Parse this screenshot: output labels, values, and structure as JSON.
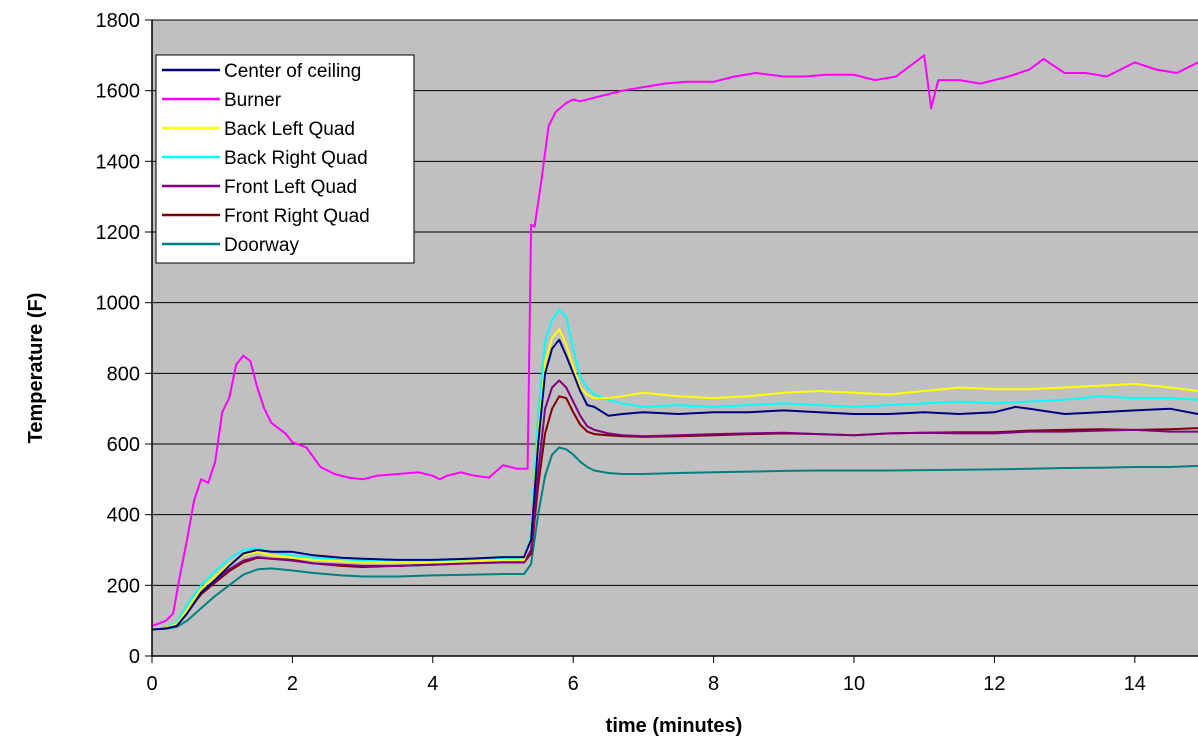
{
  "chart_data": {
    "type": "line",
    "title": "",
    "xlabel": "time (minutes)",
    "ylabel": "Temperature (F)",
    "xlim": [
      0,
      14.9
    ],
    "ylim": [
      0,
      1800
    ],
    "x_ticks": [
      0,
      2,
      4,
      6,
      8,
      10,
      12,
      14
    ],
    "y_ticks": [
      0,
      200,
      400,
      600,
      800,
      1000,
      1200,
      1400,
      1600,
      1800
    ],
    "grid": "horizontal",
    "legend_position": "top-left",
    "plot_background": "#c0c0c0",
    "series": [
      {
        "name": "Center of ceiling",
        "color": "#000080",
        "x": [
          0,
          0.2,
          0.35,
          0.5,
          0.7,
          0.9,
          1.1,
          1.3,
          1.5,
          1.7,
          2.0,
          2.3,
          2.7,
          3.0,
          3.5,
          4.0,
          4.5,
          5.0,
          5.3,
          5.4,
          5.5,
          5.6,
          5.7,
          5.8,
          5.9,
          6.0,
          6.1,
          6.2,
          6.3,
          6.5,
          6.7,
          7.0,
          7.5,
          8.0,
          8.5,
          9.0,
          9.5,
          10.0,
          10.5,
          11.0,
          11.5,
          12.0,
          12.3,
          12.5,
          13.0,
          13.5,
          14.0,
          14.5,
          14.9
        ],
        "y": [
          75,
          78,
          85,
          120,
          180,
          215,
          255,
          290,
          300,
          295,
          295,
          285,
          278,
          275,
          272,
          272,
          275,
          280,
          280,
          330,
          600,
          800,
          870,
          895,
          850,
          800,
          750,
          710,
          705,
          680,
          685,
          690,
          685,
          690,
          690,
          695,
          690,
          685,
          685,
          690,
          685,
          690,
          705,
          700,
          685,
          690,
          695,
          700,
          685
        ]
      },
      {
        "name": "Burner",
        "color": "#ff00ff",
        "x": [
          0,
          0.2,
          0.3,
          0.4,
          0.5,
          0.6,
          0.7,
          0.8,
          0.9,
          1.0,
          1.1,
          1.2,
          1.3,
          1.4,
          1.5,
          1.6,
          1.7,
          1.9,
          2.0,
          2.2,
          2.4,
          2.6,
          2.8,
          3.0,
          3.2,
          3.5,
          3.8,
          4.0,
          4.1,
          4.2,
          4.4,
          4.6,
          4.8,
          5.0,
          5.2,
          5.35,
          5.4,
          5.45,
          5.55,
          5.65,
          5.75,
          5.9,
          6.0,
          6.1,
          6.3,
          6.5,
          6.7,
          7.0,
          7.3,
          7.6,
          8.0,
          8.3,
          8.6,
          9.0,
          9.3,
          9.6,
          10.0,
          10.3,
          10.6,
          11.0,
          11.1,
          11.2,
          11.5,
          11.8,
          12.2,
          12.5,
          12.7,
          13.0,
          13.3,
          13.6,
          14.0,
          14.3,
          14.6,
          14.9
        ],
        "y": [
          85,
          100,
          120,
          230,
          330,
          440,
          500,
          490,
          550,
          690,
          730,
          825,
          850,
          835,
          760,
          700,
          660,
          630,
          605,
          590,
          535,
          515,
          505,
          500,
          510,
          515,
          520,
          510,
          500,
          510,
          520,
          510,
          505,
          540,
          530,
          530,
          1220,
          1215,
          1350,
          1500,
          1540,
          1565,
          1575,
          1570,
          1580,
          1590,
          1600,
          1610,
          1620,
          1625,
          1625,
          1640,
          1650,
          1640,
          1640,
          1645,
          1645,
          1630,
          1640,
          1700,
          1550,
          1630,
          1630,
          1620,
          1640,
          1660,
          1690,
          1650,
          1650,
          1640,
          1680,
          1660,
          1650,
          1680
        ]
      },
      {
        "name": "Back Left Quad",
        "color": "#ffff00",
        "x": [
          0,
          0.2,
          0.35,
          0.5,
          0.7,
          0.9,
          1.1,
          1.3,
          1.5,
          1.7,
          2.0,
          2.3,
          2.7,
          3.0,
          3.5,
          4.0,
          4.5,
          5.0,
          5.3,
          5.4,
          5.5,
          5.6,
          5.7,
          5.8,
          5.9,
          6.0,
          6.1,
          6.2,
          6.3,
          6.5,
          6.7,
          7.0,
          7.5,
          8.0,
          8.5,
          9.0,
          9.5,
          10.0,
          10.5,
          11.0,
          11.5,
          12.0,
          12.5,
          13.0,
          13.5,
          14.0,
          14.5,
          14.9
        ],
        "y": [
          78,
          80,
          90,
          130,
          190,
          225,
          260,
          285,
          295,
          285,
          278,
          272,
          268,
          265,
          265,
          265,
          268,
          272,
          272,
          340,
          620,
          830,
          900,
          925,
          880,
          820,
          760,
          740,
          730,
          730,
          735,
          745,
          735,
          730,
          735,
          745,
          750,
          745,
          740,
          750,
          760,
          755,
          755,
          760,
          765,
          770,
          760,
          750
        ]
      },
      {
        "name": "Back Right Quad",
        "color": "#00ffff",
        "x": [
          0,
          0.2,
          0.35,
          0.5,
          0.7,
          0.9,
          1.1,
          1.3,
          1.5,
          1.7,
          2.0,
          2.3,
          2.7,
          3.0,
          3.5,
          4.0,
          4.5,
          5.0,
          5.3,
          5.4,
          5.5,
          5.6,
          5.7,
          5.8,
          5.9,
          6.0,
          6.1,
          6.2,
          6.3,
          6.5,
          6.7,
          7.0,
          7.5,
          8.0,
          8.5,
          9.0,
          9.5,
          10.0,
          10.5,
          11.0,
          11.5,
          12.0,
          12.5,
          13.0,
          13.5,
          14.0,
          14.5,
          14.9
        ],
        "y": [
          78,
          80,
          95,
          145,
          200,
          240,
          275,
          300,
          305,
          295,
          285,
          278,
          272,
          270,
          270,
          270,
          272,
          275,
          275,
          350,
          680,
          890,
          950,
          980,
          960,
          870,
          790,
          760,
          740,
          725,
          715,
          705,
          710,
          705,
          710,
          715,
          710,
          705,
          710,
          715,
          720,
          715,
          720,
          725,
          735,
          730,
          730,
          725
        ]
      },
      {
        "name": "Front Left Quad",
        "color": "#800080",
        "x": [
          0,
          0.2,
          0.35,
          0.5,
          0.7,
          0.9,
          1.1,
          1.3,
          1.5,
          1.7,
          2.0,
          2.3,
          2.7,
          3.0,
          3.5,
          4.0,
          4.5,
          5.0,
          5.3,
          5.4,
          5.5,
          5.6,
          5.7,
          5.8,
          5.9,
          6.0,
          6.1,
          6.2,
          6.3,
          6.5,
          6.7,
          7.0,
          7.5,
          8.0,
          8.5,
          9.0,
          9.5,
          10.0,
          10.5,
          11.0,
          11.5,
          12.0,
          12.5,
          13.0,
          13.5,
          14.0,
          14.5,
          14.9
        ],
        "y": [
          78,
          80,
          88,
          125,
          180,
          212,
          245,
          270,
          280,
          275,
          270,
          262,
          258,
          255,
          255,
          258,
          262,
          265,
          265,
          300,
          520,
          700,
          760,
          780,
          760,
          720,
          680,
          650,
          640,
          630,
          625,
          622,
          625,
          628,
          630,
          632,
          628,
          625,
          630,
          632,
          630,
          630,
          635,
          635,
          638,
          640,
          635,
          635
        ]
      },
      {
        "name": "Front Right Quad",
        "color": "#800000",
        "x": [
          0,
          0.2,
          0.35,
          0.5,
          0.7,
          0.9,
          1.1,
          1.3,
          1.5,
          1.7,
          2.0,
          2.3,
          2.7,
          3.0,
          3.5,
          4.0,
          4.5,
          5.0,
          5.3,
          5.4,
          5.5,
          5.6,
          5.7,
          5.8,
          5.9,
          6.0,
          6.1,
          6.2,
          6.3,
          6.5,
          6.7,
          7.0,
          7.5,
          8.0,
          8.5,
          9.0,
          9.5,
          10.0,
          10.5,
          11.0,
          11.5,
          12.0,
          12.5,
          13.0,
          13.5,
          14.0,
          14.5,
          14.9
        ],
        "y": [
          78,
          80,
          88,
          122,
          175,
          208,
          240,
          265,
          278,
          275,
          272,
          262,
          255,
          252,
          255,
          258,
          262,
          265,
          265,
          290,
          480,
          630,
          700,
          735,
          730,
          690,
          655,
          635,
          628,
          625,
          622,
          620,
          622,
          625,
          628,
          630,
          628,
          625,
          630,
          632,
          633,
          633,
          638,
          640,
          642,
          640,
          642,
          645
        ]
      },
      {
        "name": "Doorway",
        "color": "#008080",
        "x": [
          0,
          0.2,
          0.35,
          0.5,
          0.7,
          0.9,
          1.1,
          1.3,
          1.5,
          1.7,
          2.0,
          2.3,
          2.7,
          3.0,
          3.5,
          4.0,
          4.5,
          5.0,
          5.3,
          5.4,
          5.5,
          5.6,
          5.7,
          5.8,
          5.9,
          6.0,
          6.1,
          6.2,
          6.3,
          6.5,
          6.7,
          7.0,
          7.5,
          8.0,
          8.5,
          9.0,
          9.5,
          10.0,
          10.5,
          11.0,
          11.5,
          12.0,
          12.5,
          13.0,
          13.5,
          14.0,
          14.5,
          14.9
        ],
        "y": [
          75,
          77,
          82,
          100,
          135,
          170,
          200,
          230,
          245,
          248,
          242,
          235,
          228,
          225,
          225,
          228,
          230,
          232,
          232,
          260,
          400,
          510,
          570,
          590,
          585,
          570,
          550,
          535,
          525,
          518,
          515,
          515,
          518,
          520,
          522,
          524,
          525,
          525,
          525,
          526,
          527,
          528,
          530,
          532,
          533,
          535,
          535,
          538
        ]
      }
    ]
  }
}
